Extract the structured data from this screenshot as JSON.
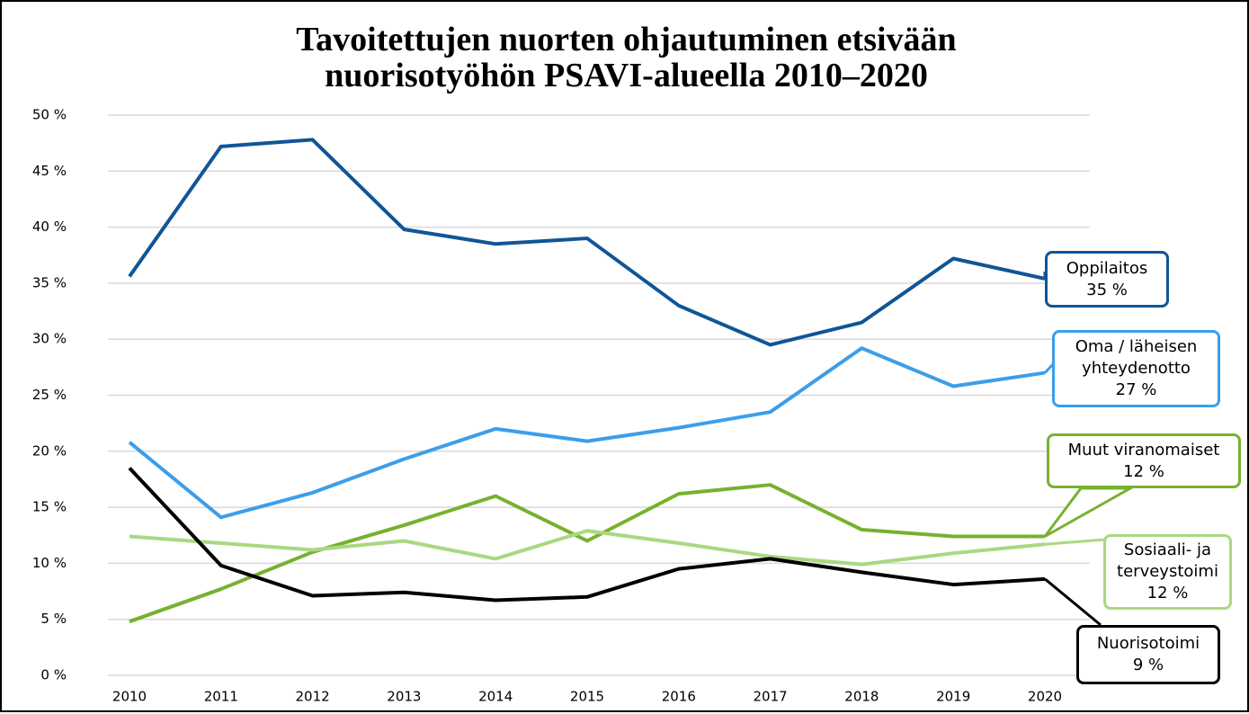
{
  "chart_data": {
    "type": "line",
    "title": [
      "Tavoitettujen nuorten ohjautuminen etsivään",
      "nuorisotyöhön PSAVI-alueella 2010–2020"
    ],
    "categories": [
      "2010",
      "2011",
      "2012",
      "2013",
      "2014",
      "2015",
      "2016",
      "2017",
      "2018",
      "2019",
      "2020"
    ],
    "series": [
      {
        "name": "Oppilaitos",
        "color": "#0f5597",
        "values": [
          35.6,
          47.2,
          47.8,
          39.8,
          38.5,
          39.0,
          33.0,
          29.5,
          31.5,
          37.2,
          35.4
        ],
        "value_labels": [
          null,
          null,
          null,
          null,
          null,
          null,
          null,
          null,
          null,
          null,
          "35 %"
        ]
      },
      {
        "name": "Oma / läheisen yhteydenotto",
        "color": "#3c9eea",
        "values": [
          20.8,
          14.1,
          16.3,
          19.3,
          22.0,
          20.9,
          22.1,
          23.5,
          29.2,
          25.8,
          27.0
        ],
        "value_labels": [
          null,
          null,
          null,
          null,
          null,
          null,
          null,
          null,
          null,
          null,
          "27 %"
        ]
      },
      {
        "name": "Muut viranomaiset",
        "color": "#77b12f",
        "values": [
          4.8,
          7.7,
          11.0,
          13.4,
          16.0,
          12.0,
          16.2,
          17.0,
          13.0,
          12.4,
          12.4
        ],
        "value_labels": [
          null,
          null,
          null,
          null,
          null,
          null,
          null,
          null,
          null,
          null,
          "12 %"
        ]
      },
      {
        "name": "Sosiaali- ja terveystoimi",
        "color": "#a9d881",
        "values": [
          12.4,
          11.8,
          11.2,
          12.0,
          10.4,
          12.9,
          11.8,
          10.6,
          9.9,
          10.9,
          11.7
        ],
        "value_labels": [
          null,
          null,
          null,
          null,
          null,
          null,
          null,
          null,
          null,
          null,
          "12 %"
        ]
      },
      {
        "name": "Nuorisotoimi",
        "color": "#000000",
        "values": [
          18.5,
          9.8,
          7.1,
          7.4,
          6.7,
          7.0,
          9.5,
          10.4,
          9.2,
          8.1,
          8.6
        ],
        "value_labels": [
          null,
          null,
          null,
          null,
          null,
          null,
          null,
          null,
          null,
          null,
          "9 %"
        ]
      }
    ],
    "ylim": [
      0,
      50
    ],
    "yticks": [
      {
        "value": 0,
        "label": "0 %"
      },
      {
        "value": 5,
        "label": "5 %"
      },
      {
        "value": 10,
        "label": "10 %"
      },
      {
        "value": 15,
        "label": "15 %"
      },
      {
        "value": 20,
        "label": "20 %"
      },
      {
        "value": 25,
        "label": "25 %"
      },
      {
        "value": 30,
        "label": "30 %"
      },
      {
        "value": 35,
        "label": "35 %"
      },
      {
        "value": 40,
        "label": "40 %"
      },
      {
        "value": 45,
        "label": "45 %"
      },
      {
        "value": 50,
        "label": "50 %"
      }
    ],
    "grid": true
  }
}
